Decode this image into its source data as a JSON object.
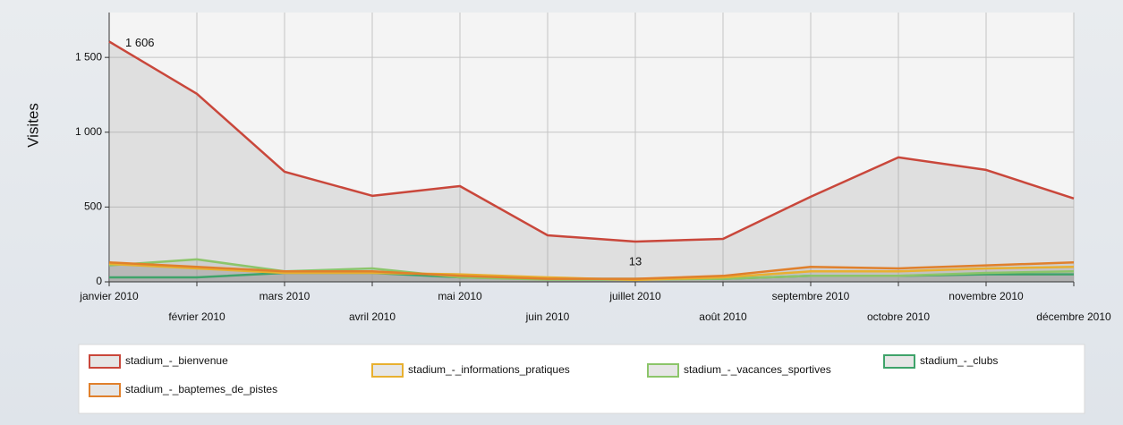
{
  "chart_data": {
    "type": "area",
    "y_label": "Visites",
    "categories": [
      "janvier 2010",
      "février 2010",
      "mars 2010",
      "avril 2010",
      "mai 2010",
      "juin 2010",
      "juillet 2010",
      "août 2010",
      "septembre 2010",
      "octobre 2010",
      "novembre 2010",
      "décembre 2010"
    ],
    "ylim": [
      0,
      1800
    ],
    "yticks": [
      0,
      500,
      {
        "value": 1000,
        "label": "1 000"
      },
      {
        "value": 1500,
        "label": "1 500"
      }
    ],
    "grid": true,
    "legend": "bottom",
    "series": [
      {
        "name": "stadium_-_bienvenue",
        "color": "#c9473b",
        "values": [
          1606,
          1257,
          736,
          575,
          640,
          311,
          269,
          287,
          569,
          832,
          748,
          557
        ],
        "value_labels": [
          "1 606",
          null,
          null,
          null,
          null,
          null,
          null,
          null,
          null,
          null,
          null,
          null
        ]
      },
      {
        "name": "stadium_-_baptemes_de_pistes",
        "color": "#e0802c",
        "values": [
          130,
          100,
          70,
          70,
          40,
          20,
          20,
          40,
          100,
          90,
          110,
          130
        ]
      },
      {
        "name": "stadium_-_informations_pratiques",
        "color": "#e8b030",
        "values": [
          120,
          90,
          60,
          60,
          50,
          30,
          13,
          30,
          70,
          70,
          90,
          100
        ],
        "value_labels": [
          null,
          null,
          null,
          null,
          null,
          null,
          "13",
          null,
          null,
          null,
          null,
          null
        ]
      },
      {
        "name": "stadium_-_vacances_sportives",
        "color": "#8cc56a",
        "values": [
          110,
          150,
          70,
          90,
          30,
          15,
          15,
          20,
          40,
          40,
          60,
          70
        ]
      },
      {
        "name": "stadium_-_clubs",
        "color": "#3fa36a",
        "values": [
          30,
          30,
          60,
          60,
          30,
          20,
          20,
          20,
          40,
          40,
          50,
          50
        ]
      }
    ]
  }
}
